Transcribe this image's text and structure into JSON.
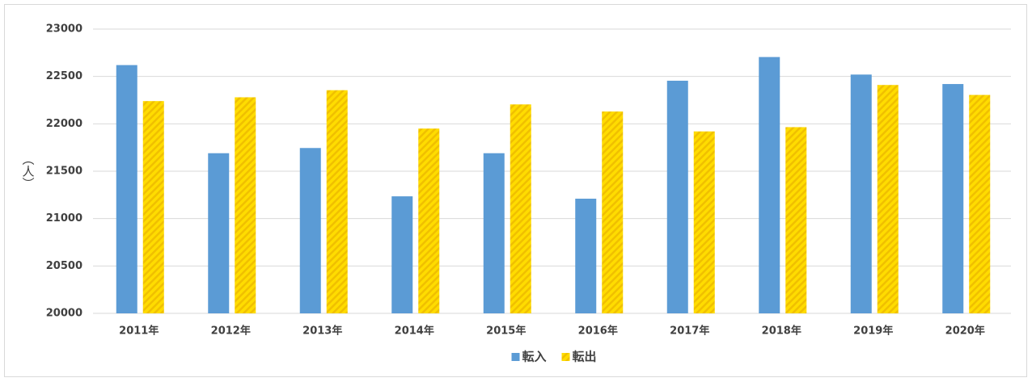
{
  "chart_data": {
    "type": "bar",
    "y_label": "（人）",
    "categories": [
      "2011年",
      "2012年",
      "2013年",
      "2014年",
      "2015年",
      "2016年",
      "2017年",
      "2018年",
      "2019年",
      "2020年"
    ],
    "series": [
      {
        "name": "転入",
        "color": "#5b9bd5",
        "values": [
          22620,
          21690,
          21745,
          21235,
          21690,
          21210,
          22455,
          22705,
          22520,
          22420
        ]
      },
      {
        "name": "転出",
        "color": "#ffdc00",
        "hatch": true,
        "values": [
          22240,
          22280,
          22355,
          21950,
          22205,
          22130,
          21920,
          21965,
          22410,
          22305
        ]
      }
    ],
    "ylim": [
      20000,
      23000
    ],
    "yticks": [
      20000,
      20500,
      21000,
      21500,
      22000,
      22500,
      23000
    ],
    "grid": true,
    "legend": "bottom"
  }
}
